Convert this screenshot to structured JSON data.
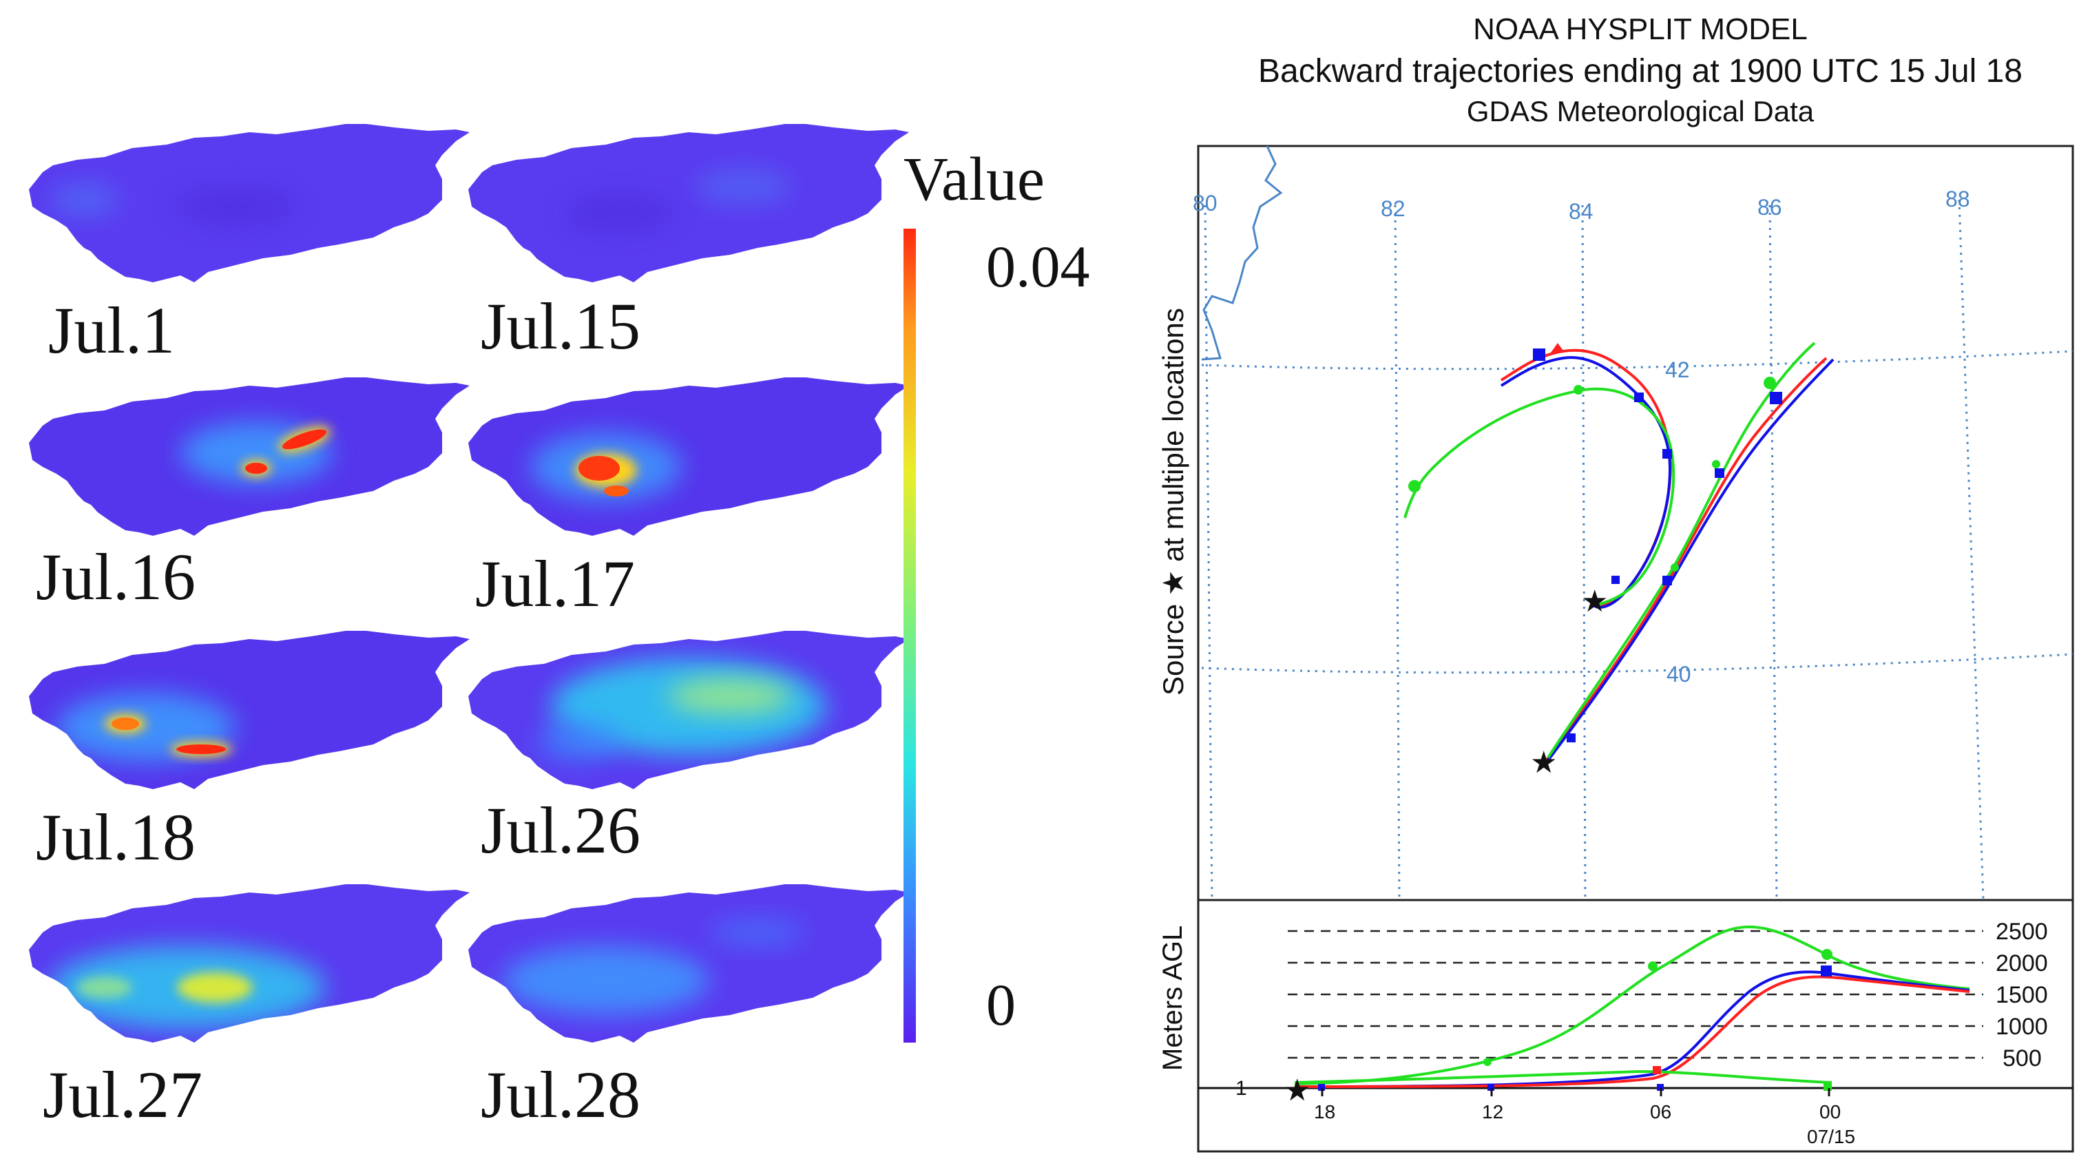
{
  "maps": {
    "panels": [
      {
        "label": "Jul.1",
        "hotspot": "none"
      },
      {
        "label": "Jul.15",
        "hotspot": "none"
      },
      {
        "label": "Jul.16",
        "hotspot": "high"
      },
      {
        "label": "Jul.17",
        "hotspot": "high"
      },
      {
        "label": "Jul.18",
        "hotspot": "high"
      },
      {
        "label": "Jul.26",
        "hotspot": "moderate"
      },
      {
        "label": "Jul.27",
        "hotspot": "moderate"
      },
      {
        "label": "Jul.28",
        "hotspot": "low"
      }
    ],
    "colorbar": {
      "title": "Value",
      "max_label": "0.04",
      "min_label": "0",
      "colors": [
        "#5a1ff0",
        "#3a8cff",
        "#2be4e4",
        "#7ff07a",
        "#e8ee2a",
        "#ff9a1e",
        "#ff2a10"
      ]
    }
  },
  "hysplit": {
    "title_line1": "NOAA HYSPLIT MODEL",
    "title_line2": "Backward trajectories ending at 1900 UTC 15 Jul 18",
    "title_line3": "GDAS Meteorological Data",
    "side_label": "Source ★ at multiple locations",
    "lon_labels": [
      "80",
      "82",
      "84",
      "86",
      "88"
    ],
    "lat_labels": [
      "42",
      "40"
    ],
    "height_axis_label": "Meters AGL",
    "height_levels": [
      "2500",
      "2000",
      "1500",
      "1000",
      "500"
    ],
    "height_first_tick": "1",
    "time_ticks": [
      "18",
      "12",
      "06",
      "00"
    ],
    "date_label": "07/15",
    "colors": {
      "red": "#ff2020",
      "blue": "#1010e8",
      "green": "#20e020",
      "grid": "#4a86c8",
      "coast": "#4a86c8"
    }
  }
}
